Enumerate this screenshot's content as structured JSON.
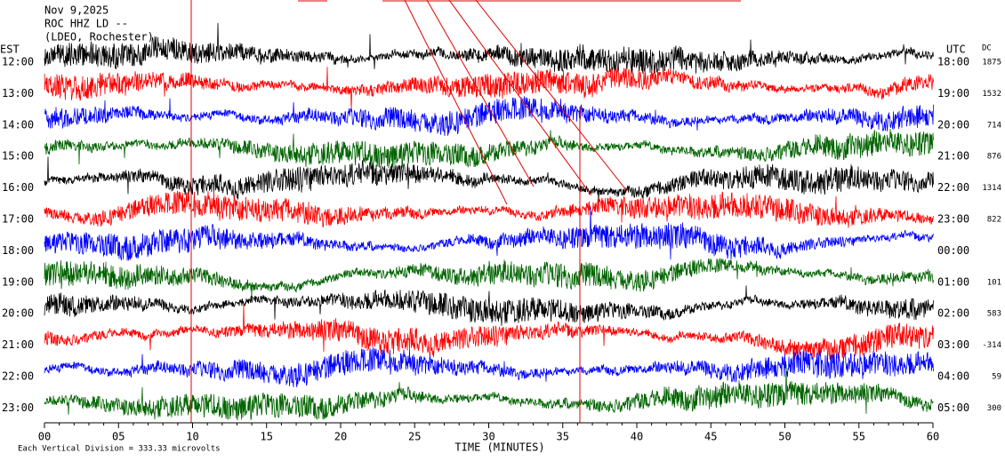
{
  "header": {
    "date": "Nov 9,2025",
    "station": "ROC HHZ LD --",
    "location": "(LDEO, Rochester)"
  },
  "left_label": "EST",
  "right_label": "UTC",
  "dc_label": "DC",
  "rows": [
    {
      "est": "12:00",
      "utc": "18:00",
      "dc": "1875"
    },
    {
      "est": "13:00",
      "utc": "19:00",
      "dc": "1532"
    },
    {
      "est": "14:00",
      "utc": "20:00",
      "dc": "714"
    },
    {
      "est": "15:00",
      "utc": "21:00",
      "dc": "876"
    },
    {
      "est": "16:00",
      "utc": "22:00",
      "dc": "1314"
    },
    {
      "est": "17:00",
      "utc": "23:00",
      "dc": "822"
    },
    {
      "est": "18:00",
      "utc": "00:00"
    },
    {
      "est": "19:00",
      "utc": "01:00",
      "dc": "101"
    },
    {
      "est": "20:00",
      "utc": "02:00",
      "dc": "583"
    },
    {
      "est": "21:00",
      "utc": "03:00",
      "dc": "-314"
    },
    {
      "est": "22:00",
      "utc": "04:00",
      "dc": "59"
    },
    {
      "est": "23:00",
      "utc": "05:00",
      "dc": "300"
    }
  ],
  "x_axis": {
    "label": "TIME (MINUTES)",
    "ticks": [
      "00",
      "05",
      "10",
      "15",
      "20",
      "25",
      "30",
      "35",
      "40",
      "45",
      "50",
      "55",
      "60"
    ]
  },
  "footer": "Each Vertical Division =  333.33 microvolts"
}
